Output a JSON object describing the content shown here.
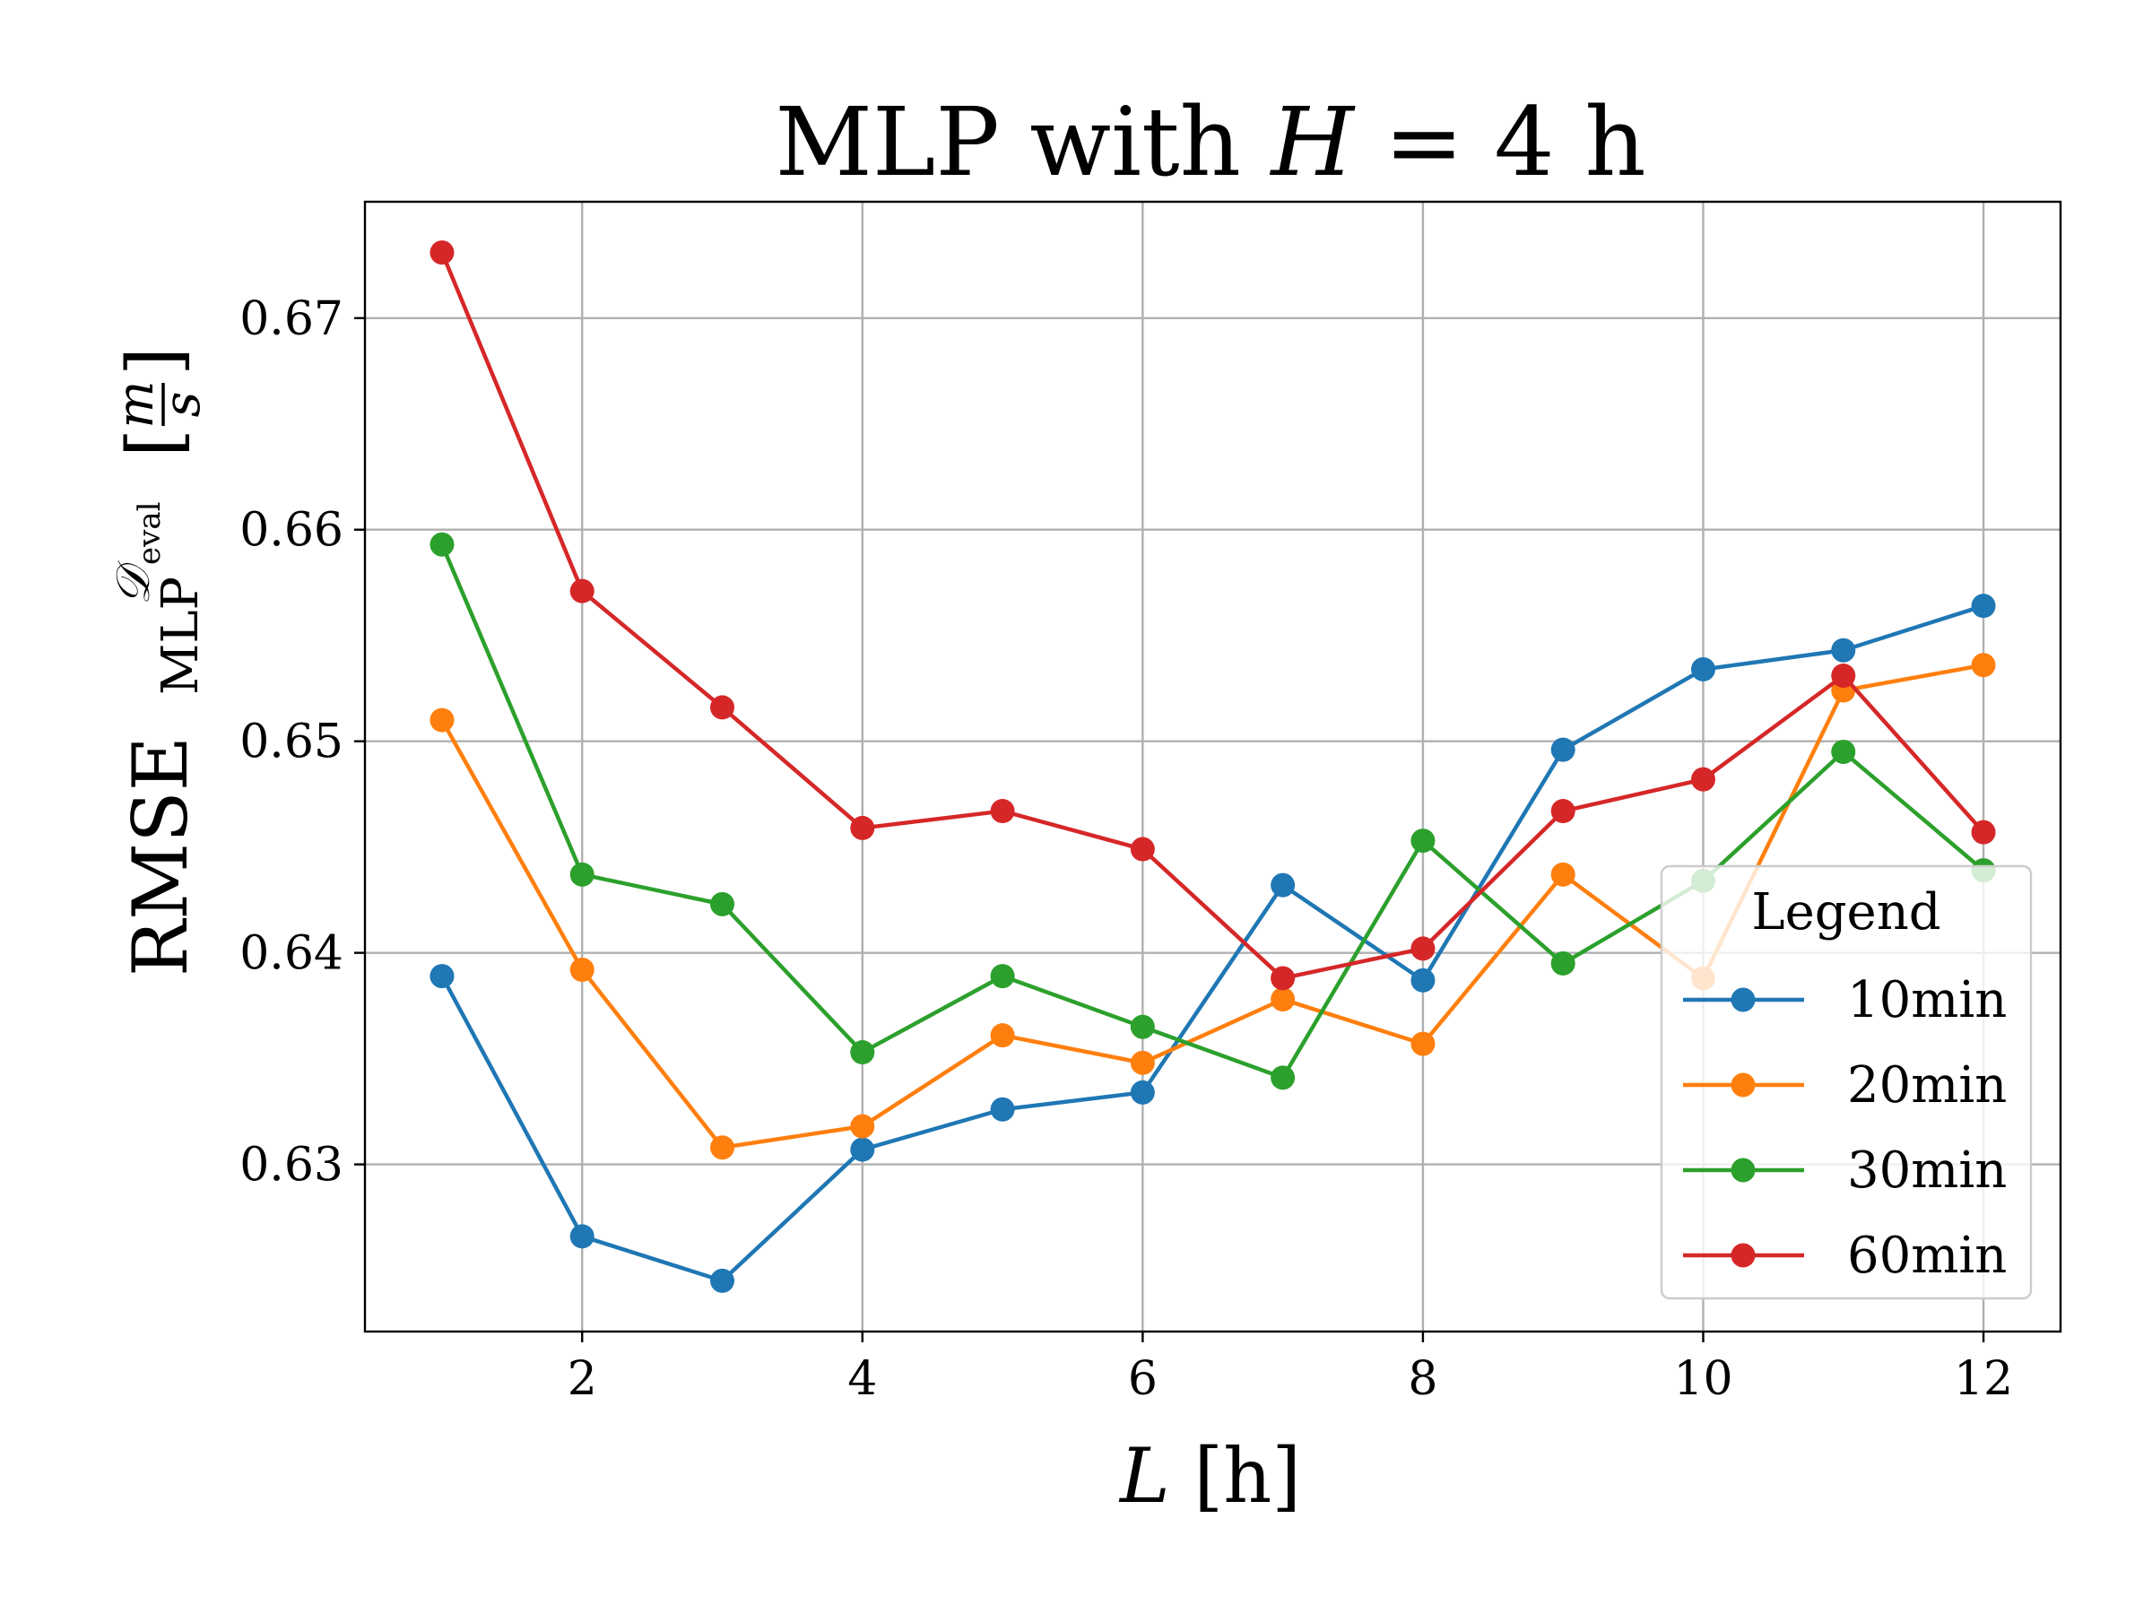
{
  "chart_data": {
    "type": "line",
    "title_prefix": "MLP with ",
    "title_var": "H",
    "title_suffix": " = 4 h",
    "xlabel_var": "L",
    "xlabel_unit": " [h]",
    "ylabel_main": "RMSE",
    "ylabel_sup": "𝒟",
    "ylabel_sup_sub": "eval",
    "ylabel_sub": "MLP",
    "ylabel_unit_num": "m",
    "ylabel_unit_den": "s",
    "x": [
      1,
      2,
      3,
      4,
      5,
      6,
      7,
      8,
      9,
      10,
      11,
      12
    ],
    "xticks": [
      "2",
      "4",
      "6",
      "8",
      "10",
      "12"
    ],
    "xtick_values": [
      2,
      4,
      6,
      8,
      10,
      12
    ],
    "yticks": [
      "0.63",
      "0.64",
      "0.65",
      "0.66",
      "0.67"
    ],
    "ytick_values": [
      0.63,
      0.64,
      0.65,
      0.66,
      0.67
    ],
    "xlim": [
      0.45,
      12.55
    ],
    "ylim": [
      0.6221,
      0.6755
    ],
    "grid": true,
    "legend": {
      "title": "Legend",
      "placement": "lower-right"
    },
    "series": [
      {
        "name": "10min",
        "color": "#1f77b4",
        "values": [
          0.6389,
          0.6266,
          0.6245,
          0.6307,
          0.6326,
          0.6334,
          0.6432,
          0.6387,
          0.6496,
          0.6534,
          0.6543,
          0.6564
        ]
      },
      {
        "name": "20min",
        "color": "#ff7f0e",
        "values": [
          0.651,
          0.6392,
          0.6308,
          0.6318,
          0.6361,
          0.6348,
          0.6378,
          0.6357,
          0.6437,
          0.6388,
          0.6524,
          0.6536
        ]
      },
      {
        "name": "30min",
        "color": "#2ca02c",
        "values": [
          0.6593,
          0.6437,
          0.6423,
          0.6353,
          0.6389,
          0.6365,
          0.6341,
          0.6453,
          0.6395,
          0.6434,
          0.6495,
          0.6439
        ]
      },
      {
        "name": "60min",
        "color": "#d62728",
        "values": [
          0.6731,
          0.6571,
          0.6516,
          0.6459,
          0.6467,
          0.6449,
          0.6388,
          0.6402,
          0.6467,
          0.6482,
          0.6531,
          0.6457
        ]
      }
    ]
  }
}
